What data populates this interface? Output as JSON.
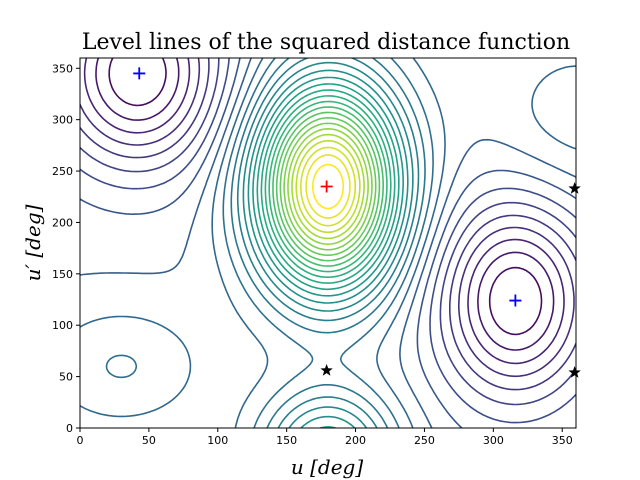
{
  "chart_data": {
    "type": "contour",
    "title": "Level lines of the squared distance function",
    "xlabel": "u [deg]",
    "ylabel": "u′ [deg]",
    "xlim": [
      0,
      360
    ],
    "ylim": [
      0,
      360
    ],
    "xticks": [
      0,
      50,
      100,
      150,
      200,
      250,
      300,
      350
    ],
    "yticks": [
      0,
      50,
      100,
      150,
      200,
      250,
      300,
      350
    ],
    "grid": false,
    "colormap": "viridis",
    "markers": [
      {
        "kind": "max",
        "symbol": "+",
        "color": "#ff0000",
        "x": 179,
        "y": 235
      },
      {
        "kind": "min",
        "symbol": "+",
        "color": "#0000ff",
        "x": 43,
        "y": 345
      },
      {
        "kind": "min",
        "symbol": "+",
        "color": "#0000ff",
        "x": 316,
        "y": 124
      },
      {
        "kind": "saddle",
        "symbol": "★",
        "color": "#000000",
        "x": 179,
        "y": 56
      },
      {
        "kind": "saddle",
        "symbol": "★",
        "color": "#000000",
        "x": 359,
        "y": 233
      },
      {
        "kind": "saddle",
        "symbol": "★",
        "color": "#000000",
        "x": 359,
        "y": 54
      }
    ]
  }
}
